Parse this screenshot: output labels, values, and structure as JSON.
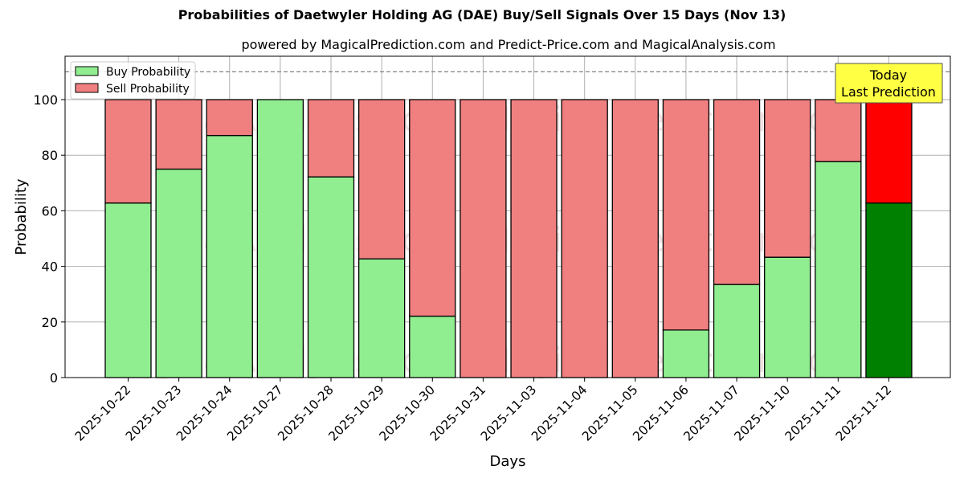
{
  "title": "Probabilities of Daetwyler Holding AG (DAE) Buy/Sell Signals Over 15 Days (Nov 13)",
  "subtitle": "powered by MagicalPrediction.com and Predict-Price.com and MagicalAnalysis.com",
  "annotation": {
    "line1": "Today",
    "line2": "Last Prediction"
  },
  "watermarks": [
    "MagicalAnalysis.com",
    "MagicalPrediction.com"
  ],
  "colors": {
    "buy": "#90ee90",
    "sell": "#f08080",
    "buy_today": "#008000",
    "sell_today": "#ff0000",
    "annotation_bg": "#ffff44"
  },
  "chart_data": {
    "type": "bar",
    "stacked": true,
    "title": "Probabilities of Daetwyler Holding AG (DAE) Buy/Sell Signals Over 15 Days (Nov 13)",
    "subtitle": "powered by MagicalPrediction.com and Predict-Price.com and MagicalAnalysis.com",
    "xlabel": "Days",
    "ylabel": "Probability",
    "ylim": [
      0,
      115
    ],
    "yticks": [
      0,
      20,
      40,
      60,
      80,
      100
    ],
    "grid": true,
    "legend_position": "upper left",
    "reference_line": {
      "y": 110,
      "style": "dashed"
    },
    "categories": [
      "2025-10-22",
      "2025-10-23",
      "2025-10-24",
      "2025-10-27",
      "2025-10-28",
      "2025-10-29",
      "2025-10-30",
      "2025-10-31",
      "2025-11-03",
      "2025-11-04",
      "2025-11-05",
      "2025-11-06",
      "2025-11-07",
      "2025-11-10",
      "2025-11-11",
      "2025-11-12"
    ],
    "series": [
      {
        "name": "Buy Probability",
        "values": [
          62.8,
          75.0,
          87.1,
          100.0,
          72.2,
          42.7,
          22.1,
          0,
          0,
          0,
          0,
          17.1,
          33.5,
          43.3,
          77.7,
          62.8
        ]
      },
      {
        "name": "Sell Probability",
        "values": [
          37.2,
          25.0,
          12.9,
          0,
          27.8,
          57.3,
          77.9,
          100,
          100,
          100,
          100,
          82.9,
          66.5,
          56.7,
          22.3,
          37.2
        ]
      }
    ]
  }
}
